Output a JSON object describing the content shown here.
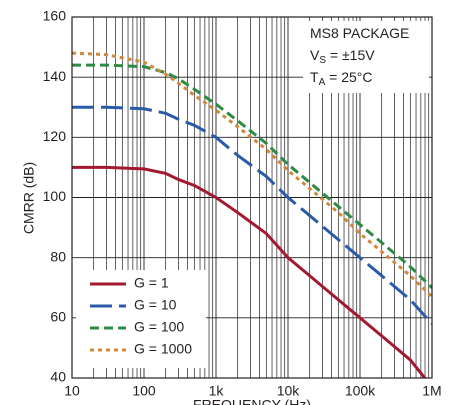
{
  "chart_data": {
    "type": "line",
    "xlabel": "FREQUENCY (Hz)",
    "ylabel": "CMRR (dB)",
    "annotations": [
      [
        "MS8 PACKAGE"
      ],
      [
        "V",
        "S",
        " = ±15V"
      ],
      [
        "T",
        "A",
        " = 25°C"
      ]
    ],
    "log_x": true,
    "grid": true,
    "legend": "lower left",
    "xlim": [
      10,
      1000000
    ],
    "xticks": [
      10,
      100,
      {
        "value": 1000,
        "label": "1k"
      },
      {
        "value": 10000,
        "label": "10k"
      },
      {
        "value": 100000,
        "label": "100k"
      },
      {
        "value": 1000000,
        "label": "1M"
      }
    ],
    "ylim": [
      40,
      160
    ],
    "yticks": [
      40,
      60,
      80,
      100,
      120,
      140,
      160
    ],
    "x": [
      10,
      30,
      100,
      200,
      300,
      500,
      1000,
      2000,
      5000,
      10000,
      20000,
      50000,
      100000,
      200000,
      500000,
      1000000
    ],
    "series": [
      {
        "name": "G = 1",
        "color": "#a3192f",
        "dash": "none",
        "values": [
          110,
          110,
          109.5,
          108,
          106,
          104,
          100,
          95,
          88,
          80,
          74,
          66,
          60,
          54,
          46,
          37
        ]
      },
      {
        "name": "G = 10",
        "color": "#2b5ba8",
        "dash": "22 7",
        "values": [
          130,
          130,
          129.5,
          128,
          126,
          124,
          120,
          114,
          107,
          100,
          94,
          86,
          80,
          74,
          66,
          58
        ]
      },
      {
        "name": "G = 100",
        "color": "#2e8b45",
        "dash": "9 5",
        "values": [
          144,
          144,
          143.5,
          141.5,
          139.5,
          136,
          131,
          125.5,
          118,
          111,
          105,
          97,
          91,
          85,
          77,
          70
        ]
      },
      {
        "name": "G = 1000",
        "color": "#d0883a",
        "dash": "4 4",
        "values": [
          148,
          147.5,
          145,
          141,
          138,
          134,
          129,
          123.5,
          116,
          109,
          103,
          95,
          88,
          82,
          74,
          67
        ]
      }
    ]
  }
}
